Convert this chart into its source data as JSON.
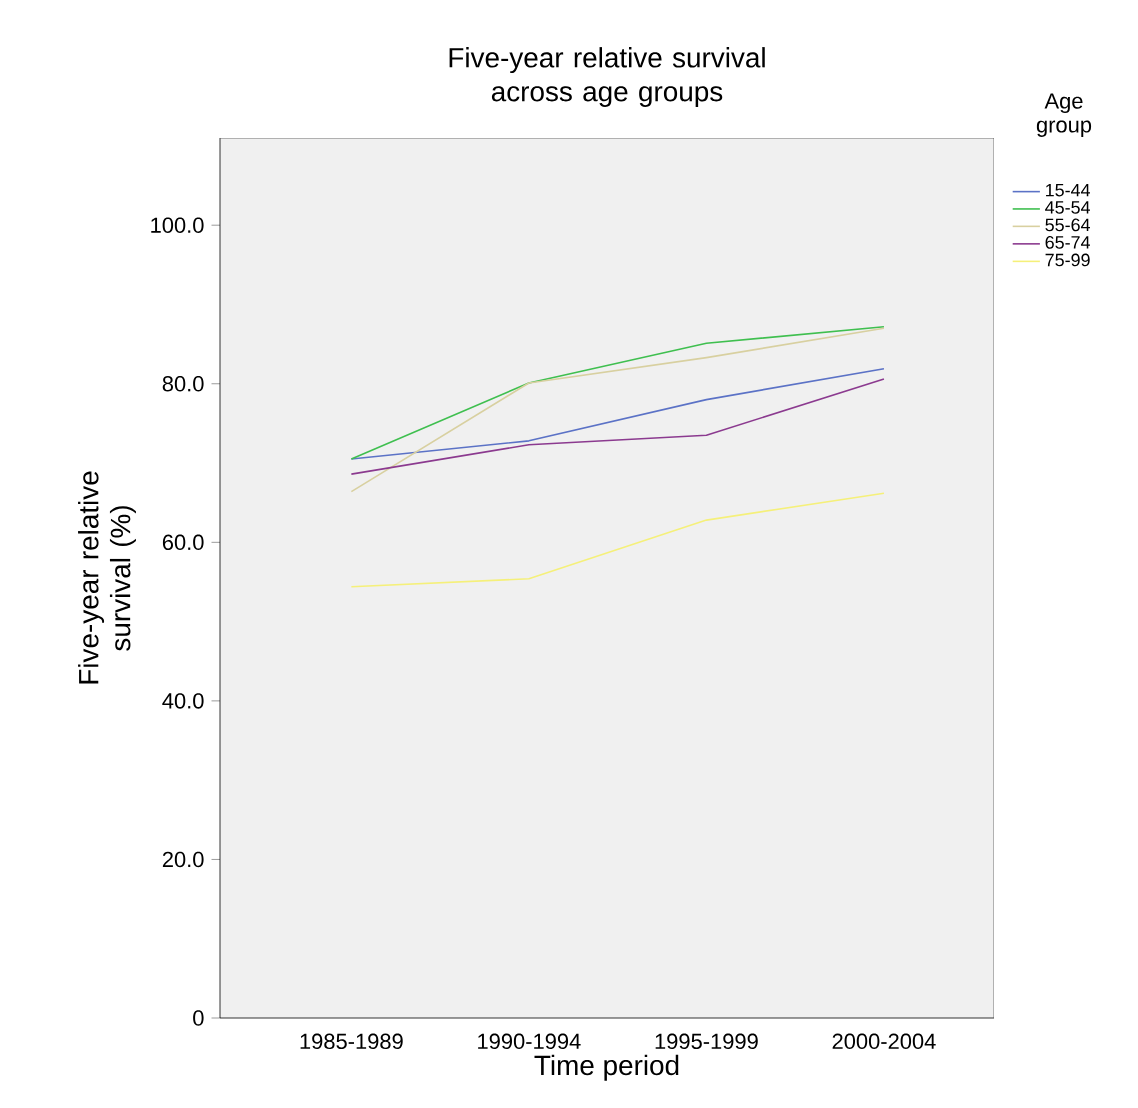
{
  "chart_data": {
    "type": "line",
    "title": "Five-year relative survival across age groups",
    "xlabel": "Time period",
    "ylabel": "Five-year relative survival (%)",
    "legend_title": "Age group",
    "legend": "right",
    "categories": [
      "1985-1989",
      "1990-1994",
      "1995-1999",
      "2000-2004"
    ],
    "ylim": [
      0,
      111
    ],
    "yticks": [
      {
        "value": 0,
        "label": "0"
      },
      {
        "value": 20,
        "label": "20.0"
      },
      {
        "value": 40,
        "label": "40.0"
      },
      {
        "value": 60,
        "label": "60.0"
      },
      {
        "value": 80,
        "label": "80.0"
      },
      {
        "value": 100,
        "label": "100.0"
      }
    ],
    "grid": false,
    "marker": "none",
    "line_style": "solid",
    "series": [
      {
        "name": "15-44",
        "color": "#5b72c6",
        "values": [
          70.5,
          72.8,
          78.0,
          81.9
        ]
      },
      {
        "name": "45-54",
        "color": "#3fbf4f",
        "values": [
          70.5,
          80.1,
          85.1,
          87.2
        ]
      },
      {
        "name": "55-64",
        "color": "#d8d0a0",
        "values": [
          66.4,
          80.1,
          83.3,
          87.0
        ]
      },
      {
        "name": "65-74",
        "color": "#8b3a8f",
        "values": [
          68.6,
          72.3,
          73.5,
          80.6
        ]
      },
      {
        "name": "75-99",
        "color": "#f5f07a",
        "values": [
          54.4,
          55.4,
          62.8,
          66.2
        ]
      }
    ]
  }
}
